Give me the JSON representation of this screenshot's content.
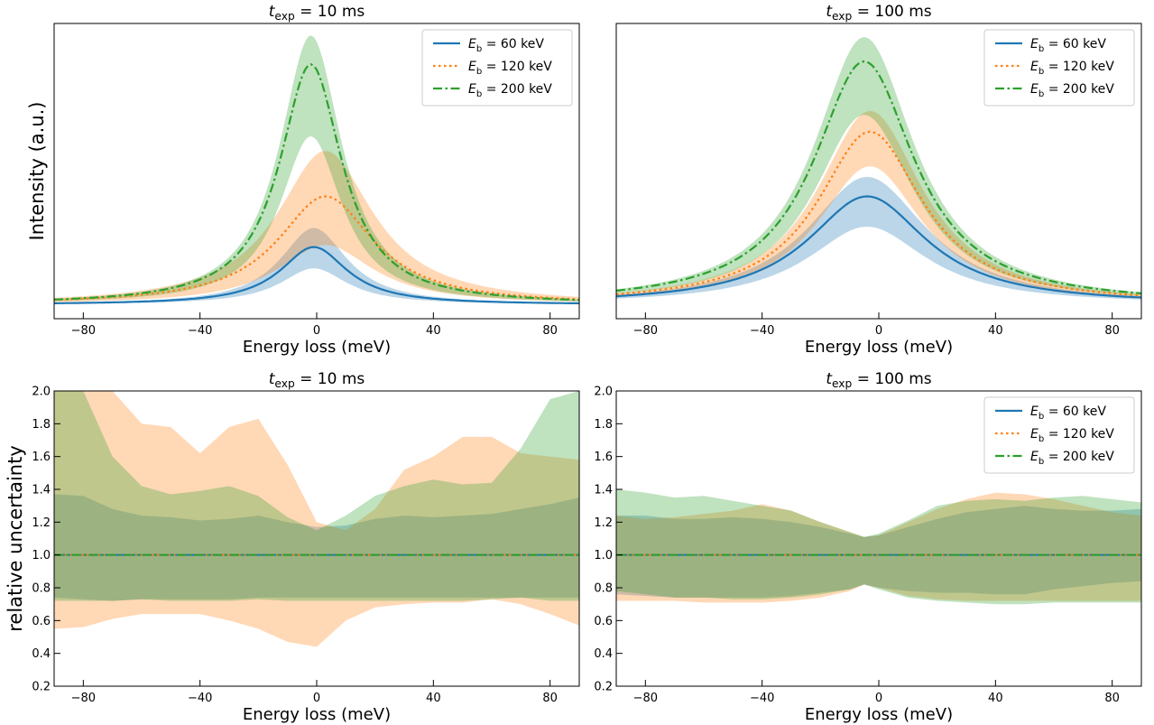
{
  "colors": {
    "blue": "#1f77b4",
    "orange": "#ff7f0e",
    "green": "#2ca02c"
  },
  "chart_data": [
    {
      "type": "line",
      "title": "t_exp = 10 ms",
      "title_main": "t",
      "title_sub": "exp",
      "title_rest": " = 10 ms",
      "xlabel": "Energy loss (meV)",
      "ylabel": "Intensity (a.u.)",
      "xlim": [
        -90,
        90
      ],
      "ylim": [
        -0.05,
        1.0
      ],
      "xticks": [
        -80,
        -40,
        0,
        40,
        80
      ],
      "xticklabels": [
        "−80",
        "−40",
        "0",
        "40",
        "80"
      ],
      "yticks": [],
      "grid": false,
      "legend": "top-right",
      "series": [
        {
          "name": "E_b = 60 keV",
          "legend_main": "E",
          "legend_sub": "b",
          "legend_rest": " = 60 keV",
          "color": "#1f77b4",
          "style": "solid",
          "shape": "lorentzian",
          "center": -1,
          "amp": 0.205,
          "hwhm": 14,
          "band_lo": 0.63,
          "band_hi": 1.33
        },
        {
          "name": "E_b = 120 keV",
          "legend_main": "E",
          "legend_sub": "b",
          "legend_rest": " = 120 keV",
          "color": "#ff7f0e",
          "style": "dotted",
          "shape": "lorentzian",
          "center": 3,
          "amp": 0.385,
          "hwhm": 20,
          "band_lo": 0.55,
          "band_hi": 1.42
        },
        {
          "name": "E_b = 200 keV",
          "legend_main": "E",
          "legend_sub": "b",
          "legend_rest": " = 200 keV",
          "color": "#2ca02c",
          "style": "dashdot",
          "shape": "lorentzian",
          "center": -2,
          "amp": 0.855,
          "hwhm": 13,
          "band_lo": 0.7,
          "band_hi": 1.12
        }
      ]
    },
    {
      "type": "line",
      "title": "t_exp = 100 ms",
      "title_main": "t",
      "title_sub": "exp",
      "title_rest": " = 100 ms",
      "xlabel": "Energy loss (meV)",
      "ylabel": "",
      "xlim": [
        -90,
        90
      ],
      "ylim": [
        -0.05,
        1.0
      ],
      "xticks": [
        -80,
        -40,
        0,
        40,
        80
      ],
      "xticklabels": [
        "−80",
        "−40",
        "0",
        "40",
        "80"
      ],
      "yticks": [],
      "grid": false,
      "legend": "top-right",
      "series": [
        {
          "name": "E_b = 60 keV",
          "legend_main": "E",
          "legend_sub": "b",
          "legend_rest": " = 60 keV",
          "color": "#1f77b4",
          "style": "solid",
          "shape": "lorentzian",
          "center": -4,
          "amp": 0.385,
          "hwhm": 25,
          "band_lo": 0.72,
          "band_hi": 1.18
        },
        {
          "name": "E_b = 120 keV",
          "legend_main": "E",
          "legend_sub": "b",
          "legend_rest": " = 120 keV",
          "color": "#ff7f0e",
          "style": "dotted",
          "shape": "lorentzian",
          "center": -3,
          "amp": 0.615,
          "hwhm": 22,
          "band_lo": 0.8,
          "band_hi": 1.12
        },
        {
          "name": "E_b = 200 keV",
          "legend_main": "E",
          "legend_sub": "b",
          "legend_rest": " = 200 keV",
          "color": "#2ca02c",
          "style": "dashdot",
          "shape": "lorentzian",
          "center": -5,
          "amp": 0.865,
          "hwhm": 21,
          "band_lo": 0.78,
          "band_hi": 1.1
        }
      ]
    },
    {
      "type": "area",
      "title": "t_exp = 10 ms",
      "title_main": "t",
      "title_sub": "exp",
      "title_rest": " = 10 ms",
      "xlabel": "Energy loss (meV)",
      "ylabel": "relative uncertainty",
      "xlim": [
        -90,
        90
      ],
      "ylim": [
        0.2,
        2.0
      ],
      "xticks": [
        -80,
        -40,
        0,
        40,
        80
      ],
      "xticklabels": [
        "−80",
        "−40",
        "0",
        "40",
        "80"
      ],
      "yticks": [
        0.2,
        0.4,
        0.6,
        0.8,
        1.0,
        1.2,
        1.4,
        1.6,
        1.8,
        2.0
      ],
      "yticklabels": [
        "0.2",
        "0.4",
        "0.6",
        "0.8",
        "1.0",
        "1.2",
        "1.4",
        "1.6",
        "1.8",
        "2.0"
      ],
      "grid": false,
      "legend": "none",
      "x": [
        -90,
        -80,
        -70,
        -60,
        -50,
        -40,
        -30,
        -20,
        -10,
        0,
        10,
        20,
        30,
        40,
        50,
        60,
        70,
        80,
        90
      ],
      "bands": [
        {
          "color": "#1f77b4",
          "upper": [
            1.37,
            1.36,
            1.28,
            1.24,
            1.23,
            1.21,
            1.22,
            1.24,
            1.2,
            1.17,
            1.18,
            1.22,
            1.24,
            1.23,
            1.24,
            1.25,
            1.28,
            1.31,
            1.35
          ],
          "lower": [
            0.74,
            0.73,
            0.72,
            0.73,
            0.73,
            0.73,
            0.73,
            0.74,
            0.74,
            0.74,
            0.74,
            0.74,
            0.74,
            0.74,
            0.74,
            0.74,
            0.74,
            0.74,
            0.74
          ]
        },
        {
          "color": "#ff7f0e",
          "upper": [
            2.0,
            2.0,
            2.0,
            1.8,
            1.78,
            1.62,
            1.78,
            1.83,
            1.55,
            1.2,
            1.15,
            1.28,
            1.52,
            1.6,
            1.72,
            1.72,
            1.62,
            1.6,
            1.58
          ],
          "lower": [
            0.55,
            0.56,
            0.61,
            0.64,
            0.64,
            0.64,
            0.6,
            0.55,
            0.47,
            0.44,
            0.6,
            0.68,
            0.7,
            0.71,
            0.71,
            0.73,
            0.7,
            0.64,
            0.57
          ]
        },
        {
          "color": "#2ca02c",
          "upper": [
            2.0,
            2.0,
            1.6,
            1.42,
            1.37,
            1.39,
            1.42,
            1.36,
            1.23,
            1.15,
            1.24,
            1.36,
            1.42,
            1.46,
            1.43,
            1.44,
            1.65,
            1.95,
            2.0
          ],
          "lower": [
            0.72,
            0.72,
            0.72,
            0.73,
            0.72,
            0.72,
            0.72,
            0.73,
            0.72,
            0.72,
            0.72,
            0.72,
            0.72,
            0.72,
            0.72,
            0.73,
            0.74,
            0.72,
            0.72
          ]
        }
      ],
      "series": [
        {
          "name": "E_b = 60 keV",
          "color": "#1f77b4",
          "style": "solid",
          "value": 1.0
        },
        {
          "name": "E_b = 120 keV",
          "color": "#ff7f0e",
          "style": "dotted",
          "value": 1.0
        },
        {
          "name": "E_b = 200 keV",
          "color": "#2ca02c",
          "style": "dashdot",
          "value": 1.0
        }
      ]
    },
    {
      "type": "area",
      "title": "t_exp = 100 ms",
      "title_main": "t",
      "title_sub": "exp",
      "title_rest": " = 100 ms",
      "xlabel": "Energy loss (meV)",
      "ylabel": "",
      "xlim": [
        -90,
        90
      ],
      "ylim": [
        0.2,
        2.0
      ],
      "xticks": [
        -80,
        -40,
        0,
        40,
        80
      ],
      "xticklabels": [
        "−80",
        "−40",
        "0",
        "40",
        "80"
      ],
      "yticks": [
        0.2,
        0.4,
        0.6,
        0.8,
        1.0,
        1.2,
        1.4,
        1.6,
        1.8,
        2.0
      ],
      "yticklabels": [
        "0.2",
        "0.4",
        "0.6",
        "0.8",
        "1.0",
        "1.2",
        "1.4",
        "1.6",
        "1.8",
        "2.0"
      ],
      "grid": false,
      "legend": "top-right",
      "x": [
        -90,
        -80,
        -70,
        -60,
        -50,
        -40,
        -30,
        -20,
        -10,
        -5,
        0,
        10,
        20,
        30,
        40,
        50,
        60,
        70,
        80,
        90
      ],
      "bands": [
        {
          "color": "#1f77b4",
          "upper": [
            1.24,
            1.24,
            1.22,
            1.22,
            1.23,
            1.22,
            1.2,
            1.17,
            1.13,
            1.11,
            1.12,
            1.17,
            1.22,
            1.26,
            1.28,
            1.3,
            1.28,
            1.27,
            1.27,
            1.28
          ],
          "lower": [
            0.76,
            0.75,
            0.74,
            0.74,
            0.74,
            0.74,
            0.75,
            0.77,
            0.79,
            0.82,
            0.8,
            0.78,
            0.77,
            0.77,
            0.76,
            0.76,
            0.79,
            0.81,
            0.83,
            0.84
          ]
        },
        {
          "color": "#ff7f0e",
          "upper": [
            1.24,
            1.22,
            1.23,
            1.25,
            1.27,
            1.31,
            1.27,
            1.2,
            1.14,
            1.11,
            1.12,
            1.2,
            1.28,
            1.34,
            1.38,
            1.37,
            1.34,
            1.3,
            1.26,
            1.24
          ],
          "lower": [
            0.72,
            0.72,
            0.72,
            0.71,
            0.71,
            0.71,
            0.72,
            0.74,
            0.78,
            0.82,
            0.8,
            0.75,
            0.73,
            0.72,
            0.72,
            0.72,
            0.72,
            0.72,
            0.72,
            0.72
          ]
        },
        {
          "color": "#2ca02c",
          "upper": [
            1.4,
            1.38,
            1.35,
            1.36,
            1.33,
            1.3,
            1.27,
            1.2,
            1.14,
            1.11,
            1.13,
            1.21,
            1.3,
            1.33,
            1.34,
            1.33,
            1.35,
            1.36,
            1.34,
            1.32
          ],
          "lower": [
            0.78,
            0.76,
            0.74,
            0.74,
            0.73,
            0.73,
            0.74,
            0.76,
            0.79,
            0.82,
            0.79,
            0.74,
            0.72,
            0.71,
            0.7,
            0.7,
            0.71,
            0.71,
            0.71,
            0.71
          ]
        }
      ],
      "series": [
        {
          "name": "E_b = 60 keV",
          "legend_main": "E",
          "legend_sub": "b",
          "legend_rest": " = 60 keV",
          "color": "#1f77b4",
          "style": "solid",
          "value": 1.0
        },
        {
          "name": "E_b = 120 keV",
          "legend_main": "E",
          "legend_sub": "b",
          "legend_rest": " = 120 keV",
          "color": "#ff7f0e",
          "style": "dotted",
          "value": 1.0
        },
        {
          "name": "E_b = 200 keV",
          "legend_main": "E",
          "legend_sub": "b",
          "legend_rest": " = 200 keV",
          "color": "#2ca02c",
          "style": "dashdot",
          "value": 1.0
        }
      ]
    }
  ]
}
